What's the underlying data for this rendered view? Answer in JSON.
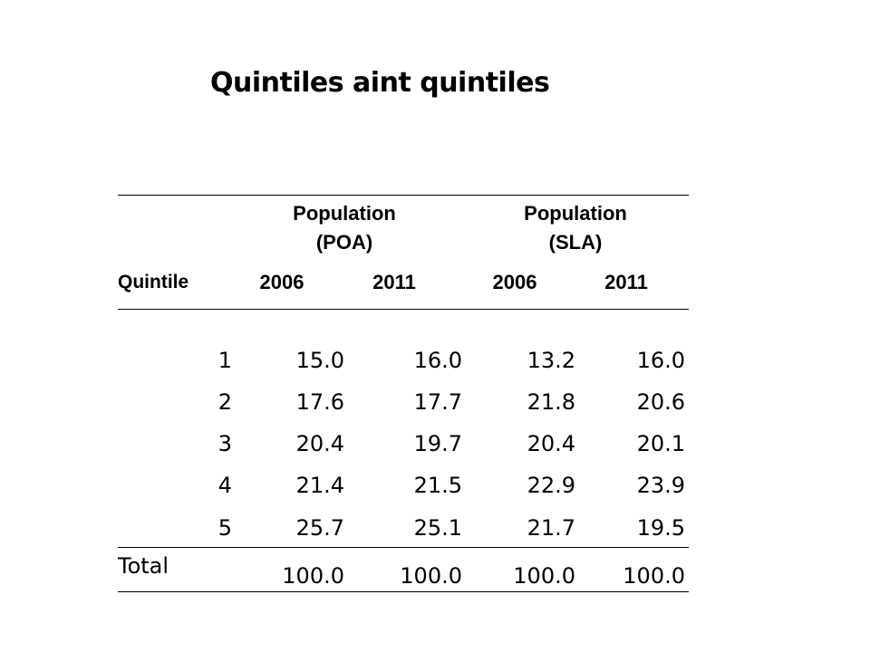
{
  "title": "Quintiles aint quintiles",
  "table": {
    "group_headers": [
      {
        "line1": "Population",
        "line2": "(POA)"
      },
      {
        "line1": "Population",
        "line2": "(SLA)"
      }
    ],
    "first_column_header": "Quintile",
    "year_headers": [
      "2006",
      "2011",
      "2006",
      "2011"
    ],
    "rows": [
      {
        "quintile": "1",
        "values": [
          "15.0",
          "16.0",
          "13.2",
          "16.0"
        ]
      },
      {
        "quintile": "2",
        "values": [
          "17.6",
          "17.7",
          "21.8",
          "20.6"
        ]
      },
      {
        "quintile": "3",
        "values": [
          "20.4",
          "19.7",
          "20.4",
          "20.1"
        ]
      },
      {
        "quintile": "4",
        "values": [
          "21.4",
          "21.5",
          "22.9",
          "23.9"
        ]
      },
      {
        "quintile": "5",
        "values": [
          "25.7",
          "25.1",
          "21.7",
          "19.5"
        ]
      }
    ],
    "total": {
      "label": "Total",
      "values": [
        "100.0",
        "100.0",
        "100.0",
        "100.0"
      ]
    }
  }
}
